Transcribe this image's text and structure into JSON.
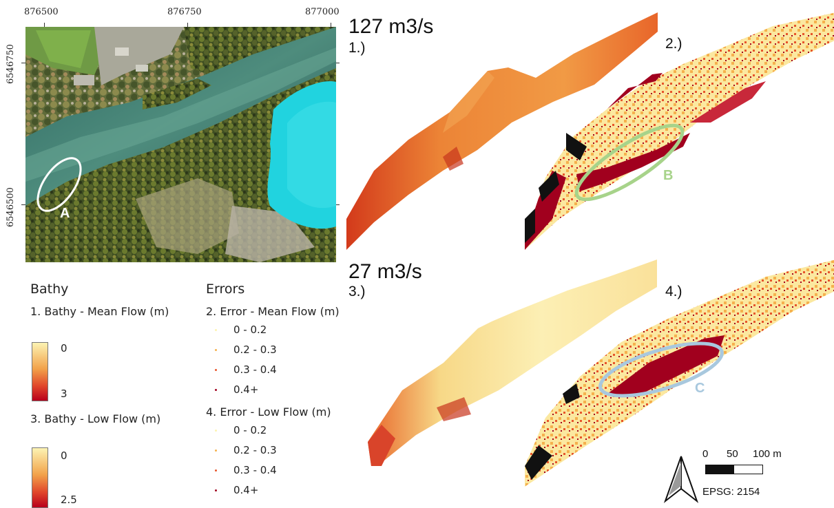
{
  "map_panel": {
    "x_ticks": [
      "876500",
      "876750",
      "877000"
    ],
    "y_ticks": [
      "6546750",
      "6546500"
    ],
    "ellipse_label": "A"
  },
  "headings": {
    "mean_flow": "127 m3/s",
    "low_flow": "27 m3/s"
  },
  "panels": [
    "1.)",
    "2.)",
    "3.)",
    "4.)"
  ],
  "ellipse_labels": {
    "b": "B",
    "c": "C"
  },
  "legend": {
    "bathy_title": "Bathy",
    "bathy_mean": "1. Bathy - Mean Flow (m)",
    "bathy_mean_min": "0",
    "bathy_mean_max": "3",
    "bathy_low": "3. Bathy - Low Flow (m)",
    "bathy_low_min": "0",
    "bathy_low_max": "2.5",
    "errors_title": "Errors",
    "error_mean": "2. Error - Mean Flow (m)",
    "error_low": "4. Error - Low Flow (m)",
    "error_classes": [
      "0 - 0.2",
      "0.2 - 0.3",
      "0.3 - 0.4",
      "0.4+"
    ],
    "error_colors": [
      "#fdf3b0",
      "#f5b04d",
      "#e8552a",
      "#a1001e"
    ]
  },
  "scale_bar": {
    "labels": [
      "0",
      "50",
      "100 m"
    ],
    "epsg": "EPSG: 2154"
  }
}
